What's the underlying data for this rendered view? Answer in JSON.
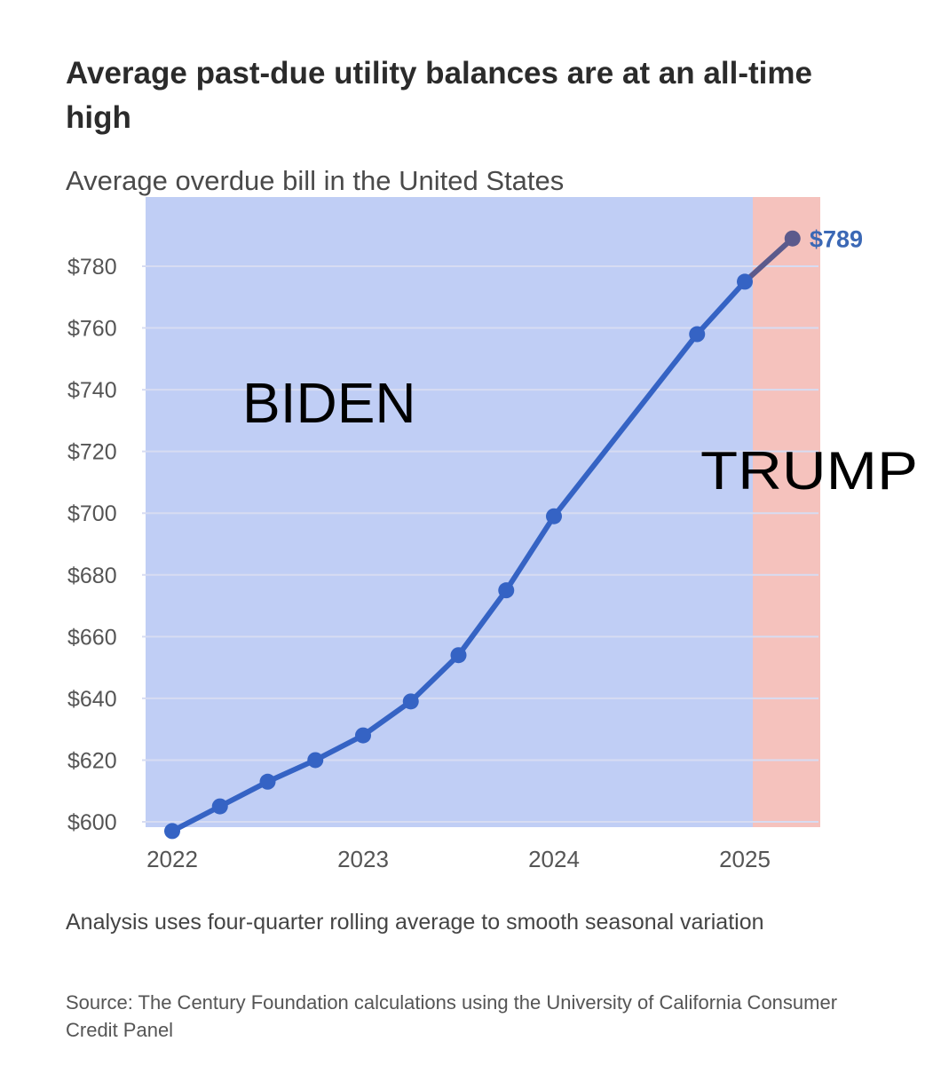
{
  "colors": {
    "biden_band": "#c0cef5",
    "trump_band": "#f5c2bd",
    "line": "#3563c4",
    "line_trump": "#5b5a8c",
    "grid": "#d7dcf2",
    "axis_text": "#555555",
    "value_label": "#3b68b5"
  },
  "chart_data": {
    "type": "line",
    "title": "Average past-due utility balances are at an all-time high",
    "subtitle": "Average overdue bill in the United States",
    "xlabel": "",
    "ylabel": "",
    "x_ticks": [
      "2022",
      "2023",
      "2024",
      "2025"
    ],
    "x_tick_values": [
      2022,
      2023,
      2024,
      2025
    ],
    "y_ticks": [
      "$600",
      "$620",
      "$640",
      "$660",
      "$680",
      "$700",
      "$720",
      "$740",
      "$760",
      "$780"
    ],
    "ylim": [
      600,
      789
    ],
    "xlim": [
      2022,
      2025.25
    ],
    "grid": true,
    "series": [
      {
        "x": [
          2022.0,
          2022.25,
          2022.5,
          2022.75,
          2023.0,
          2023.25,
          2023.5,
          2023.75,
          2024.0,
          2024.75,
          2025.0,
          2025.25
        ],
        "values": [
          597,
          605,
          613,
          620,
          628,
          639,
          654,
          675,
          699,
          758,
          775,
          789
        ]
      }
    ],
    "end_label": "$789",
    "regions": [
      {
        "label": "BIDEN",
        "from": 2021.85,
        "to": 2025.05
      },
      {
        "label": "TRUMP",
        "from": 2025.05,
        "to": 2025.4
      }
    ],
    "note": "Analysis uses four-quarter rolling average to smooth seasonal variation",
    "source": "Source: The Century Foundation calculations using the University of California Consumer Credit Panel"
  }
}
